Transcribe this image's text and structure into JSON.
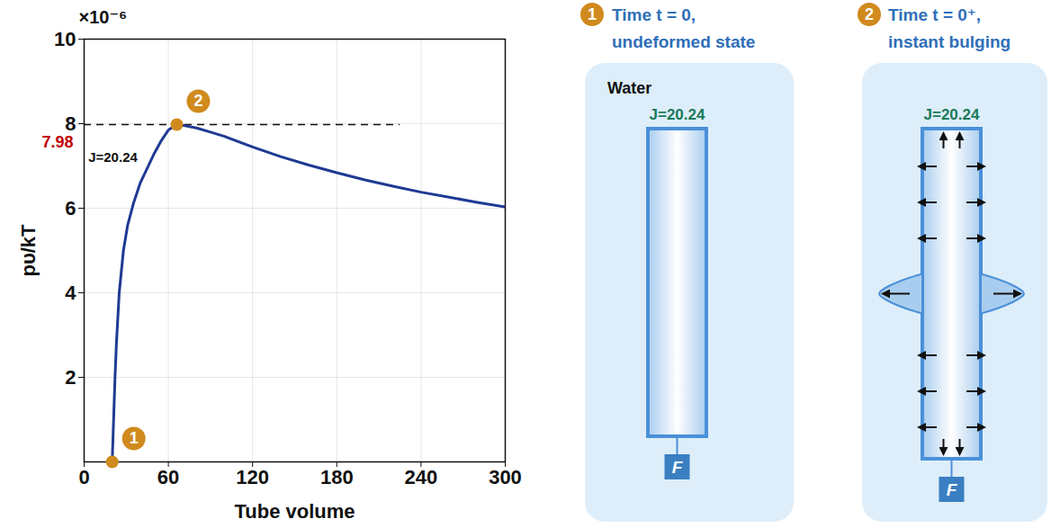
{
  "chart_data": {
    "type": "line",
    "x_label": "Tube volume",
    "y_label": "pυ/kT",
    "y_multiplier": "×10⁻⁶",
    "xlim": [
      0,
      300
    ],
    "xticks": [
      0,
      60,
      120,
      180,
      240,
      300
    ],
    "ylim": [
      0,
      10
    ],
    "yticks": [
      2,
      4,
      6,
      8,
      10
    ],
    "grid": true,
    "x": [
      20,
      21,
      22,
      23,
      25,
      28,
      31,
      35,
      40,
      45,
      50,
      55,
      60,
      66,
      72,
      80,
      90,
      100,
      120,
      140,
      160,
      180,
      200,
      220,
      240,
      260,
      280,
      300
    ],
    "series": [
      {
        "name": "J=20.24",
        "color": "#1f3a93",
        "values": [
          0,
          1.0,
          2.0,
          2.8,
          4.0,
          5.0,
          5.6,
          6.1,
          6.6,
          6.95,
          7.3,
          7.6,
          7.85,
          7.98,
          7.95,
          7.9,
          7.8,
          7.7,
          7.45,
          7.22,
          7.02,
          6.84,
          6.67,
          6.52,
          6.38,
          6.26,
          6.14,
          6.03
        ]
      }
    ],
    "annotations": [
      {
        "text": "J=20.24",
        "x": 3,
        "y": 7.2
      }
    ],
    "reference_line": {
      "y": 7.98,
      "x": [
        0,
        225
      ],
      "label": "7.98",
      "color": "#c00000",
      "line_style": "dashed"
    },
    "markers": [
      {
        "label": "1",
        "x": 20,
        "y": 0
      },
      {
        "label": "2",
        "x": 66,
        "y": 7.98
      }
    ],
    "marker_color": "#d08a1e"
  },
  "diagrams": [
    {
      "step": "1",
      "title": "Time t = 0, undeformed state",
      "medium": "Water",
      "label": "J=20.24",
      "force": "F"
    },
    {
      "step": "2",
      "title": "Time t = 0⁺, instant bulging",
      "label": "J=20.24",
      "force": "F"
    }
  ]
}
